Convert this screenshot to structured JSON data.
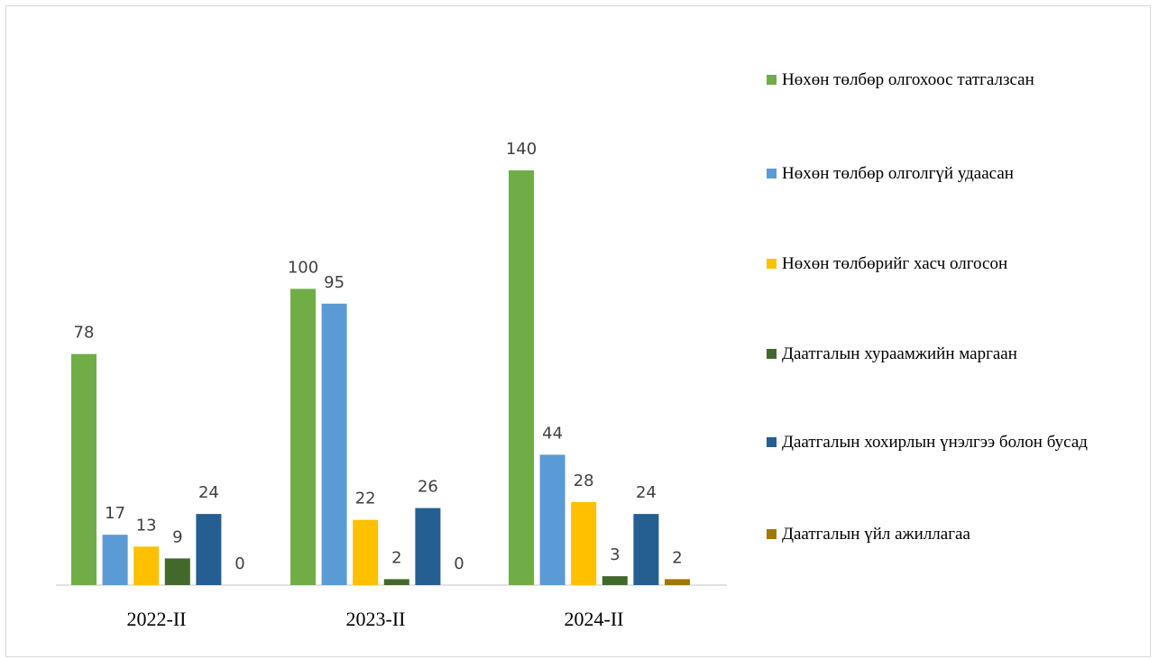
{
  "chart_data": {
    "type": "bar",
    "categories": [
      "2022-II",
      "2023-II",
      "2024-II"
    ],
    "series": [
      {
        "name": "Нөхөн төлбөр олгохоос татгалзсан",
        "color": "#70ad47",
        "values": [
          78,
          100,
          140
        ]
      },
      {
        "name": "Нөхөн төлбөр олголгүй удаасан",
        "color": "#5b9bd5",
        "values": [
          17,
          95,
          44
        ]
      },
      {
        "name": "Нөхөн төлбөрийг хасч олгосон",
        "color": "#ffc000",
        "values": [
          13,
          22,
          28
        ]
      },
      {
        "name": "Даатгалын хураамжийн маргаан",
        "color": "#43682b",
        "values": [
          9,
          2,
          3
        ]
      },
      {
        "name": "Даатгалын хохирлын үнэлгээ болон бусад",
        "color": "#255e91",
        "values": [
          24,
          26,
          24
        ]
      },
      {
        "name": "Даатгалын үйл ажиллагаа",
        "color": "#9e7800",
        "values": [
          0,
          0,
          2
        ]
      }
    ],
    "title": "",
    "xlabel": "",
    "ylabel": "",
    "ylim": [
      0,
      150
    ],
    "grid": false,
    "legend_position": "right",
    "data_labels": true
  }
}
